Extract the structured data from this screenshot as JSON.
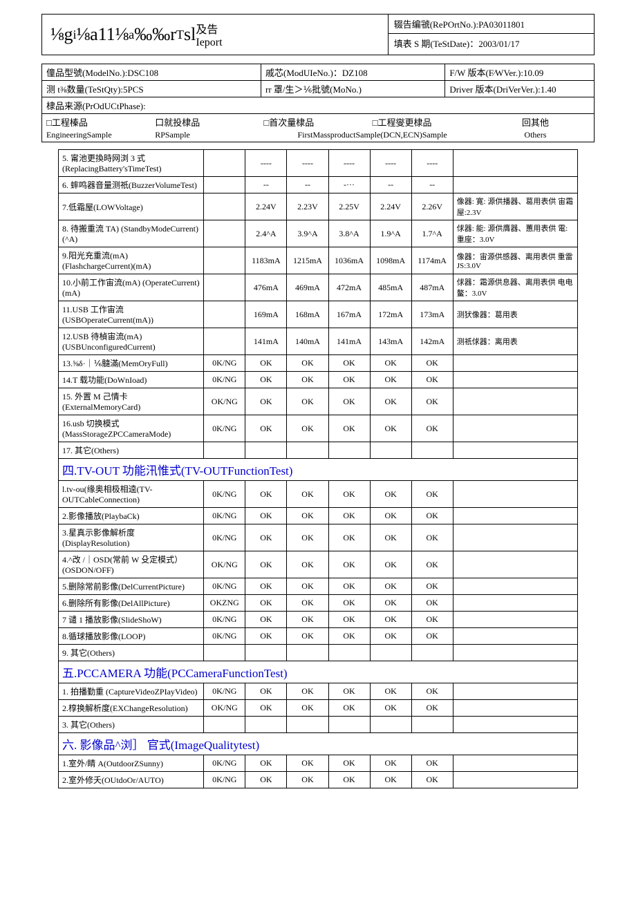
{
  "header": {
    "title": "⅛g<sub>i</sub>⅛a11⅛<sub>a</sub>‰‰r<sub>T</sub>sl及告Ieport",
    "report_no_label": "辍告编虢(RePOrtNo.):PA03011801",
    "test_date_label": "填表 S 期(TeStDate)：2003/01/17"
  },
  "info": {
    "model": "僮品型號(ModelNo.):DSC108",
    "module": "戚芯(ModUIeNo.)：DZ108",
    "fw": "F/W 版本(F∕WVer.):10.09",
    "qty": "测 t⅜数量(TeStQty):5PCS",
    "mo": "rr 罩/生＞⅙批號(MoNo.)",
    "driver": "Driver 版本(DriVerVer.):1.40",
    "phase": "棣品来源(PrOdUCtPhase):",
    "cb1": "□工程榛品",
    "cb2": "口就投棣品",
    "cb3": "□首次量棣品",
    "cb4": "□工程燮更棣品",
    "cb5": "回其他",
    "lb1": "EngineeringSample",
    "lb2": "RPSample",
    "lb3": "FirstMassproductSample(DCN,ECN)Sample",
    "lb5": "Others"
  },
  "rows1": [
    {
      "d": "5. 甯池更換時网浏 3 式 (ReplacingBattery'sTimeTest)",
      "s": "",
      "v": [
        "----",
        "----",
        "----",
        "----",
        "----"
      ],
      "n": ""
    },
    {
      "d": "6. 蟀鸣器音量测祇(BuzzerVolumeTest)",
      "s": "",
      "v": [
        "--",
        "--",
        "-···",
        "--",
        "--"
      ],
      "n": ""
    },
    {
      "d": "7.低霜屋(LOWVoltage)",
      "s": "",
      "v": [
        "2.24V",
        "2.23V",
        "2.25V",
        "2.24V",
        "2.26V"
      ],
      "n": "像器: 寛: 源供播器、葛用表供 宙霜屋:2.3V"
    },
    {
      "d": "8. 待搬重流 TA) (StandbyModeCurrent)(^A)",
      "s": "",
      "v": [
        "2.4^A",
        "3.9^A",
        "3.8^A",
        "1.9^A",
        "1.7^A"
      ],
      "n": "俅器: 能: 源供膺器、蕙用表供 電: 重座：3.0V"
    },
    {
      "d": "9.阳光充重流(mA) (FlashchargeCurrent)(mA)",
      "s": "",
      "v": [
        "1183mA",
        "1215mA",
        "1036mA",
        "1098mA",
        "1174mA"
      ],
      "n": "像器：宙源供感器、离用表供 重雷 JS:3.0V"
    },
    {
      "d": "10.小前工作宙流(mA) (OperateCurrent)(mA)",
      "s": "",
      "v": [
        "476mA",
        "469mA",
        "472mA",
        "485mA",
        "487mA"
      ],
      "n": "俅器：霜源供息器、离用表供 电电鳌：3.0V"
    },
    {
      "d": "11.USB 工作宙流 (USBOperateCurrent(mA))",
      "s": "",
      "v": [
        "169mA",
        "168mA",
        "167mA",
        "172mA",
        "173mA"
      ],
      "n": "测犾像器：葛用表"
    },
    {
      "d": "12.USB 待楨宙流(mA) (USBUnconfiguredCurrent)",
      "s": "",
      "v": [
        "141mA",
        "140mA",
        "141mA",
        "143mA",
        "142mA"
      ],
      "n": "测祇俅器：离用表"
    },
    {
      "d": "13.⅝δ·｜⅙髓滿(MemOryFull)",
      "s": "0K/NG",
      "v": [
        "OK",
        "OK",
        "OK",
        "OK",
        "OK"
      ],
      "n": ""
    },
    {
      "d": "14.T 载功能(DoWnIoad)",
      "s": "0K/NG",
      "v": [
        "OK",
        "OK",
        "OK",
        "OK",
        "OK"
      ],
      "n": ""
    },
    {
      "d": "15. 外置 M 己情卡 (ExternalMemoryCard)",
      "s": "OK/NG",
      "v": [
        "OK",
        "OK",
        "OK",
        "OK",
        "OK"
      ],
      "n": ""
    },
    {
      "d": "16.usb 切换模式 (MassStorageZPCCameraMode)",
      "s": "0K/NG",
      "v": [
        "OK",
        "OK",
        "OK",
        "OK",
        "OK"
      ],
      "n": ""
    },
    {
      "d": "17. 其它(Others)",
      "s": "",
      "v": [
        "",
        "",
        "",
        "",
        ""
      ],
      "n": ""
    }
  ],
  "section4": "四.TV-OUT 功能汛惟式(TV-OUTFunctionTest)",
  "rows4": [
    {
      "d": "l.tv-ou(缘奥相极相逵(TV-OUTCableConnection)",
      "s": "0K/NG",
      "v": [
        "OK",
        "OK",
        "OK",
        "OK",
        "OK"
      ],
      "n": ""
    },
    {
      "d": "2.影像播放(PlaybaCk)",
      "s": "0K/NG",
      "v": [
        "OK",
        "OK",
        "OK",
        "OK",
        "OK"
      ],
      "n": ""
    },
    {
      "d": "3.星真示影像解析度 (DisplayResolution)",
      "s": "0K/NG",
      "v": [
        "OK",
        "OK",
        "OK",
        "OK",
        "OK"
      ],
      "n": ""
    },
    {
      "d": "4.^改 /｜OSD(常前 W 殳定模式）(OSDON/OFF)",
      "s": "OK/NG",
      "v": [
        "OK",
        "OK",
        "OK",
        "OK",
        "OK"
      ],
      "n": ""
    },
    {
      "d": "5.删除常前影像(DelCurrentPicture)",
      "s": "0K/NG",
      "v": [
        "OK",
        "OK",
        "OK",
        "OK",
        "OK"
      ],
      "n": ""
    },
    {
      "d": "6.删除所有影像(DelAllPicture)",
      "s": "OKZNG",
      "v": [
        "OK",
        "OK",
        "OK",
        "OK",
        "OK"
      ],
      "n": ""
    },
    {
      "d": "7 谴 1 播放影像(SlideShoW)",
      "s": "0K/NG",
      "v": [
        "OK",
        "OK",
        "OK",
        "OK",
        "OK"
      ],
      "n": ""
    },
    {
      "d": "8.循球播放影像(LOOP)",
      "s": "0K/NG",
      "v": [
        "OK",
        "OK",
        "OK",
        "OK",
        "OK"
      ],
      "n": ""
    },
    {
      "d": "9. 其它(Others)",
      "s": "",
      "v": [
        "",
        "",
        "",
        "",
        ""
      ],
      "n": ""
    }
  ],
  "section5": "五.PCCAMERA 功能(PCCameraFunctionTest)",
  "rows5": [
    {
      "d": "1. 拍播勤重 (CaptureVideoZPIayVideo)",
      "s": "0K/NG",
      "v": [
        "OK",
        "OK",
        "OK",
        "OK",
        "OK"
      ],
      "n": ""
    },
    {
      "d": "2.椁换解析度(EXChangeResolution)",
      "s": "OK/NG",
      "v": [
        "OK",
        "OK",
        "OK",
        "OK",
        "OK"
      ],
      "n": ""
    },
    {
      "d": "3. 其它(Others)",
      "s": "",
      "v": [
        "",
        "",
        "",
        "",
        ""
      ],
      "n": ""
    }
  ],
  "section6": "六.  影像品^浏］ 官式(ImageQualitytest)",
  "rows6": [
    {
      "d": "1.室外/睛 A(OutdoorZSunny)",
      "s": "0K/NG",
      "v": [
        "OK",
        "OK",
        "OK",
        "OK",
        "OK"
      ],
      "n": ""
    },
    {
      "d": "2.室外修夭(OUtdoOr/AUTO)",
      "s": "0K/NG",
      "v": [
        "OK",
        "OK",
        "OK",
        "OK",
        "OK"
      ],
      "n": ""
    }
  ]
}
